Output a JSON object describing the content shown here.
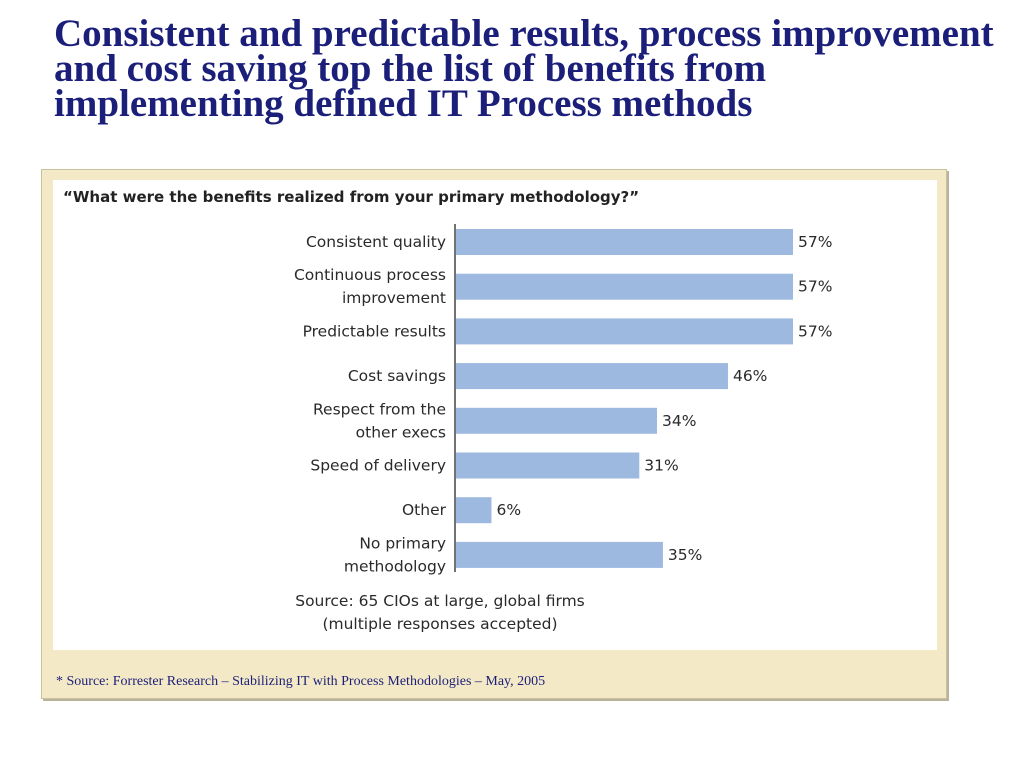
{
  "slide": {
    "title": "Consistent and predictable results, process improvement and cost saving top the list of benefits from implementing defined IT Process methods",
    "asterisk": "*",
    "footnote": "* Source: Forrester Research – Stabilizing IT with Process Methodologies – May, 2005"
  },
  "colors": {
    "title": "#1b1f7a",
    "bar": "#9db9e0",
    "panel": "#f4e9c6"
  },
  "chart_data": {
    "type": "bar",
    "orientation": "horizontal",
    "title": "“What were the benefits realized from your primary methodology?”",
    "categories": [
      [
        "Consistent quality"
      ],
      [
        "Continuous process",
        "improvement"
      ],
      [
        "Predictable results"
      ],
      [
        "Cost savings"
      ],
      [
        "Respect from the",
        "other execs"
      ],
      [
        "Speed of delivery"
      ],
      [
        "Other"
      ],
      [
        "No primary",
        "methodology"
      ]
    ],
    "values": [
      57,
      57,
      57,
      46,
      34,
      31,
      6,
      35
    ],
    "value_labels": [
      "57%",
      "57%",
      "57%",
      "46%",
      "34%",
      "31%",
      "6%",
      "35%"
    ],
    "unit": "%",
    "xlim": [
      0,
      57
    ],
    "grid": false,
    "legend": "none",
    "source_lines": [
      "Source: 65 CIOs at large, global firms",
      "(multiple responses accepted)"
    ]
  }
}
